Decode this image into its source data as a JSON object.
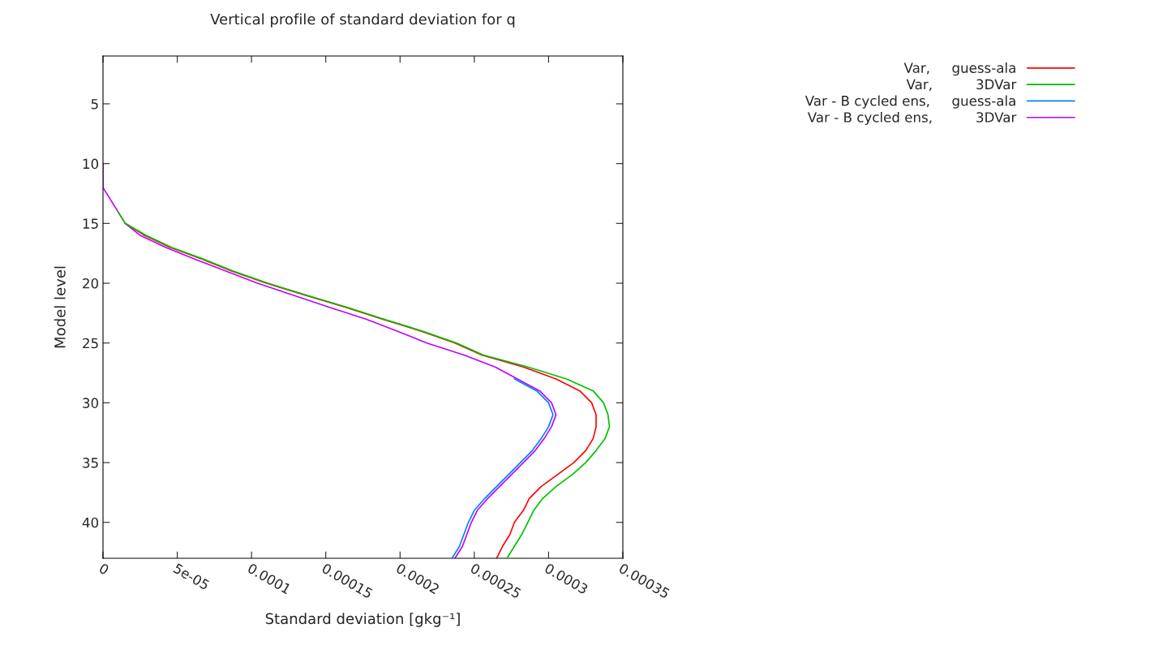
{
  "chart_data": {
    "type": "line",
    "title": "Vertical profile of standard deviation for q",
    "xlabel": "Standard deviation [gkg⁻¹]",
    "ylabel": "Model level",
    "orientation": "horizontal",
    "x": [
      10,
      11,
      12,
      13,
      14,
      15,
      16,
      17,
      18,
      19,
      20,
      21,
      22,
      23,
      24,
      25,
      26,
      27,
      28,
      29,
      30,
      31,
      32,
      33,
      34,
      35,
      36,
      37,
      38,
      39,
      40,
      41,
      42,
      43
    ],
    "series": [
      {
        "name": "Var,     guess-ala",
        "color": "#ff0000",
        "values": [
          null,
          null,
          null,
          null,
          null,
          1.5e-05,
          2.8e-05,
          4.5e-05,
          6.7e-05,
          8.7e-05,
          0.00011,
          0.000136,
          0.000163,
          0.000188,
          0.000214,
          0.000237,
          0.000255,
          0.000283,
          0.000305,
          0.000321,
          0.000329,
          0.000332,
          0.000332,
          0.00033,
          0.000325,
          0.000317,
          0.000306,
          0.000295,
          0.000287,
          0.000283,
          0.000277,
          0.000274,
          0.000269,
          0.000265
        ]
      },
      {
        "name": "Var,          3DVar",
        "color": "#00c000",
        "values": [
          null,
          null,
          null,
          null,
          1e-05,
          1.5e-05,
          2.9e-05,
          4.6e-05,
          6.8e-05,
          8.8e-05,
          0.000111,
          0.000137,
          0.000164,
          0.000189,
          0.000215,
          0.000238,
          0.000256,
          0.000286,
          0.000312,
          0.00033,
          0.000337,
          0.00034,
          0.000341,
          0.000338,
          0.000332,
          0.000325,
          0.000316,
          0.000305,
          0.000296,
          0.00029,
          0.000286,
          0.000282,
          0.000277,
          0.000272
        ]
      },
      {
        "name": "Var - B cycled ens,     guess-ala",
        "color": "#0080ff",
        "values": [
          null,
          null,
          null,
          null,
          null,
          null,
          null,
          null,
          null,
          null,
          null,
          null,
          null,
          null,
          null,
          null,
          null,
          null,
          0.000277,
          0.000292,
          0.0003,
          0.000303,
          0.0003,
          0.000295,
          0.000289,
          0.000281,
          0.000273,
          0.000265,
          0.000257,
          0.00025,
          0.000246,
          0.000243,
          0.00024,
          0.000235
        ]
      },
      {
        "name": "Var - B cycled ens,          3DVar",
        "color": "#c000ff",
        "values": [
          0,
          0,
          0,
          5e-06,
          1e-05,
          1.5e-05,
          2.5e-05,
          4.2e-05,
          6.2e-05,
          8.3e-05,
          0.000104,
          0.000128,
          0.000152,
          0.000177,
          0.000198,
          0.000218,
          0.000243,
          0.000264,
          0.000279,
          0.000294,
          0.000302,
          0.000305,
          0.000302,
          0.000297,
          0.000291,
          0.000283,
          0.000275,
          0.000267,
          0.000259,
          0.000252,
          0.000248,
          0.000245,
          0.000242,
          0.000237
        ]
      }
    ],
    "xlim": [
      0,
      0.00035
    ],
    "xticks": [
      0,
      {
        "value": 5e-05,
        "label": "5e-05"
      },
      0.0001,
      0.00015,
      0.0002,
      0.00025,
      0.0003,
      0.00035
    ],
    "ylim": [
      43,
      1
    ],
    "yticks": [
      5,
      10,
      15,
      20,
      25,
      30,
      35,
      40
    ],
    "grid": false,
    "legend": "top right",
    "marker": "none",
    "line_style": "solid"
  }
}
